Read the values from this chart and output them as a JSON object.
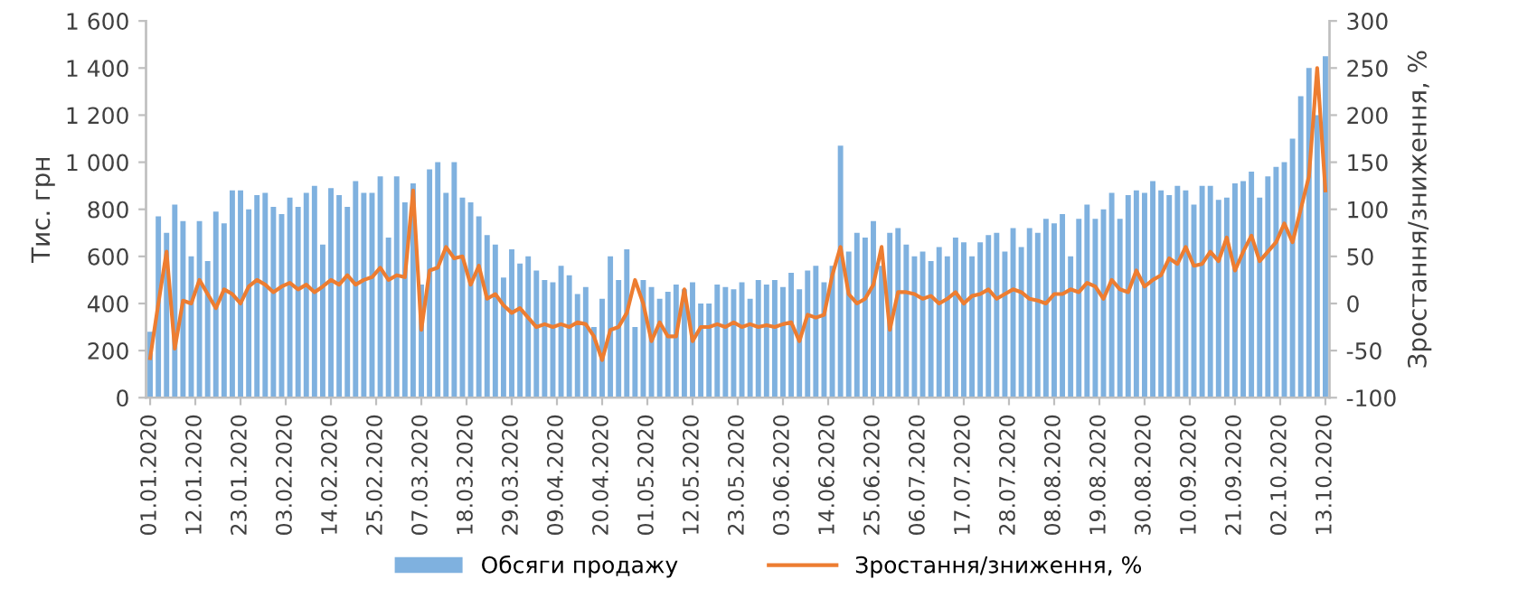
{
  "chart_data": {
    "type": "bar",
    "xlabel": null,
    "ylabel": "Тис. грн",
    "y2label": "Зростання/зниження, %",
    "legend": "bottom",
    "grid": false,
    "x": [
      "2020-01-01",
      "2020-01-03",
      "2020-01-05",
      "2020-01-07",
      "2020-01-09",
      "2020-01-11",
      "2020-01-13",
      "2020-01-15",
      "2020-01-17",
      "2020-01-19",
      "2020-01-21",
      "2020-01-23",
      "2020-01-25",
      "2020-01-27",
      "2020-01-29",
      "2020-01-31",
      "2020-02-02",
      "2020-02-04",
      "2020-02-06",
      "2020-02-08",
      "2020-02-10",
      "2020-02-12",
      "2020-02-14",
      "2020-02-16",
      "2020-02-18",
      "2020-02-20",
      "2020-02-22",
      "2020-02-24",
      "2020-02-26",
      "2020-02-28",
      "2020-03-01",
      "2020-03-03",
      "2020-03-05",
      "2020-03-07",
      "2020-03-09",
      "2020-03-11",
      "2020-03-13",
      "2020-03-15",
      "2020-03-17",
      "2020-03-19",
      "2020-03-21",
      "2020-03-23",
      "2020-03-25",
      "2020-03-27",
      "2020-03-29",
      "2020-03-31",
      "2020-04-02",
      "2020-04-04",
      "2020-04-06",
      "2020-04-08",
      "2020-04-10",
      "2020-04-12",
      "2020-04-14",
      "2020-04-16",
      "2020-04-18",
      "2020-04-20",
      "2020-04-22",
      "2020-04-24",
      "2020-04-26",
      "2020-04-28",
      "2020-04-30",
      "2020-05-02",
      "2020-05-04",
      "2020-05-06",
      "2020-05-08",
      "2020-05-10",
      "2020-05-12",
      "2020-05-14",
      "2020-05-16",
      "2020-05-18",
      "2020-05-20",
      "2020-05-22",
      "2020-05-24",
      "2020-05-26",
      "2020-05-28",
      "2020-05-30",
      "2020-06-01",
      "2020-06-03",
      "2020-06-05",
      "2020-06-07",
      "2020-06-09",
      "2020-06-11",
      "2020-06-13",
      "2020-06-15",
      "2020-06-17",
      "2020-06-19",
      "2020-06-21",
      "2020-06-23",
      "2020-06-25",
      "2020-06-27",
      "2020-06-29",
      "2020-07-01",
      "2020-07-03",
      "2020-07-05",
      "2020-07-07",
      "2020-07-09",
      "2020-07-11",
      "2020-07-13",
      "2020-07-15",
      "2020-07-17",
      "2020-07-19",
      "2020-07-21",
      "2020-07-23",
      "2020-07-25",
      "2020-07-27",
      "2020-07-29",
      "2020-07-31",
      "2020-08-02",
      "2020-08-04",
      "2020-08-06",
      "2020-08-08",
      "2020-08-10",
      "2020-08-12",
      "2020-08-14",
      "2020-08-16",
      "2020-08-18",
      "2020-08-20",
      "2020-08-22",
      "2020-08-24",
      "2020-08-26",
      "2020-08-28",
      "2020-08-30",
      "2020-09-01",
      "2020-09-03",
      "2020-09-05",
      "2020-09-07",
      "2020-09-09",
      "2020-09-11",
      "2020-09-13",
      "2020-09-15",
      "2020-09-17",
      "2020-09-19",
      "2020-09-21",
      "2020-09-23",
      "2020-09-25",
      "2020-09-27",
      "2020-09-29",
      "2020-10-01",
      "2020-10-03",
      "2020-10-05",
      "2020-10-07",
      "2020-10-09",
      "2020-10-11",
      "2020-10-13"
    ],
    "series": [
      {
        "name": "Обсяги продажу",
        "color": "#7fb1df",
        "values": [
          280,
          770,
          700,
          820,
          750,
          600,
          750,
          580,
          790,
          740,
          880,
          880,
          800,
          860,
          870,
          810,
          780,
          850,
          810,
          870,
          900,
          650,
          890,
          860,
          810,
          920,
          870,
          870,
          940,
          680,
          940,
          830,
          910,
          480,
          970,
          1000,
          870,
          1000,
          850,
          830,
          770,
          690,
          650,
          510,
          630,
          570,
          600,
          540,
          500,
          490,
          560,
          520,
          440,
          470,
          300,
          420,
          600,
          500,
          630,
          300,
          500,
          470,
          420,
          450,
          480,
          460,
          490,
          400,
          400,
          480,
          470,
          460,
          490,
          420,
          500,
          480,
          500,
          470,
          530,
          460,
          540,
          560,
          490,
          560,
          1070,
          620,
          700,
          680,
          750,
          560,
          700,
          720,
          650,
          600,
          620,
          580,
          640,
          600,
          680,
          660,
          600,
          660,
          690,
          700,
          620,
          720,
          640,
          720,
          700,
          760,
          740,
          780,
          600,
          760,
          820,
          760,
          800,
          870,
          760,
          860,
          880,
          870,
          920,
          880,
          860,
          900,
          880,
          820,
          900,
          900,
          840,
          850,
          910,
          920,
          960,
          850,
          940,
          980,
          1000,
          1100,
          1280,
          1400,
          1200,
          1450
        ]
      },
      {
        "name": "Зростання/зниження, %",
        "type": "line",
        "axis": "y2",
        "color": "#ed7d31",
        "values": [
          -58,
          0,
          55,
          -48,
          3,
          0,
          25,
          10,
          -5,
          15,
          10,
          0,
          18,
          25,
          20,
          12,
          18,
          22,
          15,
          20,
          12,
          18,
          25,
          20,
          30,
          20,
          25,
          28,
          38,
          25,
          30,
          28,
          120,
          -28,
          35,
          38,
          60,
          48,
          50,
          20,
          40,
          5,
          10,
          -2,
          -10,
          -5,
          -15,
          -25,
          -22,
          -25,
          -22,
          -25,
          -20,
          -22,
          -35,
          -60,
          -28,
          -25,
          -10,
          25,
          0,
          -40,
          -20,
          -35,
          -35,
          15,
          -40,
          -25,
          -25,
          -22,
          -25,
          -20,
          -25,
          -22,
          -25,
          -23,
          -25,
          -22,
          -20,
          -40,
          -12,
          -15,
          -12,
          30,
          60,
          10,
          0,
          5,
          20,
          60,
          -28,
          12,
          12,
          10,
          5,
          8,
          0,
          5,
          12,
          0,
          8,
          10,
          15,
          5,
          10,
          15,
          12,
          5,
          3,
          0,
          10,
          10,
          15,
          12,
          22,
          18,
          5,
          25,
          15,
          12,
          35,
          18,
          25,
          30,
          48,
          42,
          60,
          40,
          42,
          55,
          45,
          70,
          35,
          55,
          72,
          45,
          55,
          65,
          85,
          65,
          100,
          135,
          250,
          120
        ]
      }
    ],
    "xlim": [
      "2019-12-31",
      "2020-10-14"
    ],
    "xticks": [
      {
        "value": "2020-01-01",
        "label": "01.01.2020"
      },
      {
        "value": "2020-01-12",
        "label": "12.01.2020"
      },
      {
        "value": "2020-01-23",
        "label": "23.01.2020"
      },
      {
        "value": "2020-02-03",
        "label": "03.02.2020"
      },
      {
        "value": "2020-02-14",
        "label": "14.02.2020"
      },
      {
        "value": "2020-02-25",
        "label": "25.02.2020"
      },
      {
        "value": "2020-03-07",
        "label": "07.03.2020"
      },
      {
        "value": "2020-03-18",
        "label": "18.03.2020"
      },
      {
        "value": "2020-03-29",
        "label": "29.03.2020"
      },
      {
        "value": "2020-04-09",
        "label": "09.04.2020"
      },
      {
        "value": "2020-04-20",
        "label": "20.04.2020"
      },
      {
        "value": "2020-05-01",
        "label": "01.05.2020"
      },
      {
        "value": "2020-05-12",
        "label": "12.05.2020"
      },
      {
        "value": "2020-05-23",
        "label": "23.05.2020"
      },
      {
        "value": "2020-06-03",
        "label": "03.06.2020"
      },
      {
        "value": "2020-06-14",
        "label": "14.06.2020"
      },
      {
        "value": "2020-06-25",
        "label": "25.06.2020"
      },
      {
        "value": "2020-07-06",
        "label": "06.07.2020"
      },
      {
        "value": "2020-07-17",
        "label": "17.07.2020"
      },
      {
        "value": "2020-07-28",
        "label": "28.07.2020"
      },
      {
        "value": "2020-08-08",
        "label": "08.08.2020"
      },
      {
        "value": "2020-08-19",
        "label": "19.08.2020"
      },
      {
        "value": "2020-08-30",
        "label": "30.08.2020"
      },
      {
        "value": "2020-09-10",
        "label": "10.09.2020"
      },
      {
        "value": "2020-09-21",
        "label": "21.09.2020"
      },
      {
        "value": "2020-10-02",
        "label": "02.10.2020"
      },
      {
        "value": "2020-10-13",
        "label": "13.10.2020"
      }
    ],
    "ylim": [
      0,
      1600
    ],
    "yticks": [
      0,
      200,
      400,
      600,
      800,
      {
        "value": 1000,
        "label": "1 000"
      },
      {
        "value": 1200,
        "label": "1 200"
      },
      {
        "value": 1400,
        "label": "1 400"
      },
      {
        "value": 1600,
        "label": "1 600"
      }
    ],
    "y2lim": [
      -100,
      300
    ],
    "y2ticks": [
      -100,
      -50,
      0,
      50,
      100,
      150,
      200,
      250,
      300
    ]
  }
}
